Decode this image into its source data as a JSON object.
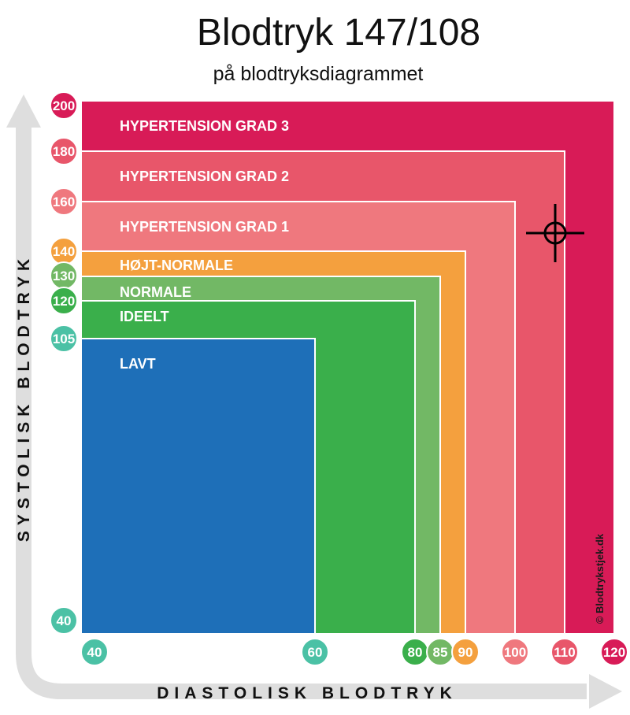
{
  "header": {
    "title": "Blodtryk 147/108",
    "subtitle": "på blodtryksdiagrammet"
  },
  "chart_data": {
    "type": "area",
    "title": "Blodtryk 147/108",
    "subtitle": "på blodtryksdiagrammet",
    "xlabel": "DIASTOLISK BLODTRYK",
    "ylabel": "SYSTOLISK BLODTRYK",
    "xlim": [
      40,
      120
    ],
    "ylim": [
      40,
      200
    ],
    "zones": [
      {
        "name": "HYPERTENSION GRAD 3",
        "max_diastolic": 120,
        "max_systolic": 200,
        "color": "#d81b57"
      },
      {
        "name": "HYPERTENSION GRAD 2",
        "max_diastolic": 110,
        "max_systolic": 180,
        "color": "#e8566a"
      },
      {
        "name": "HYPERTENSION GRAD 1",
        "max_diastolic": 100,
        "max_systolic": 160,
        "color": "#ef787e"
      },
      {
        "name": "HØJT-NORMALE",
        "max_diastolic": 90,
        "max_systolic": 140,
        "color": "#f4a03e"
      },
      {
        "name": "NORMALE",
        "max_diastolic": 85,
        "max_systolic": 130,
        "color": "#72b865"
      },
      {
        "name": "IDEELT",
        "max_diastolic": 80,
        "max_systolic": 120,
        "color": "#3aaf4b"
      },
      {
        "name": "LAVT",
        "max_diastolic": 60,
        "max_systolic": 105,
        "color": "#1e6fb8"
      }
    ],
    "x_ticks": [
      {
        "label": "40",
        "color": "#4bc1a5"
      },
      {
        "label": "60",
        "color": "#4bc1a5"
      },
      {
        "label": "80",
        "color": "#3aaf4b"
      },
      {
        "label": "85",
        "color": "#72b865"
      },
      {
        "label": "90",
        "color": "#f4a03e"
      },
      {
        "label": "100",
        "color": "#ef787e"
      },
      {
        "label": "110",
        "color": "#e8566a"
      },
      {
        "label": "120",
        "color": "#d81b57"
      }
    ],
    "y_ticks": [
      {
        "label": "200",
        "color": "#d81b57"
      },
      {
        "label": "180",
        "color": "#e8566a"
      },
      {
        "label": "160",
        "color": "#ef787e"
      },
      {
        "label": "140",
        "color": "#f4a03e"
      },
      {
        "label": "130",
        "color": "#72b865"
      },
      {
        "label": "120",
        "color": "#3aaf4b"
      },
      {
        "label": "105",
        "color": "#4bc1a5"
      },
      {
        "label": "40",
        "color": "#4bc1a5"
      }
    ],
    "marker": {
      "diastolic": 108,
      "systolic": 147
    },
    "copyright": "© Blodtrykstjek.dk"
  }
}
